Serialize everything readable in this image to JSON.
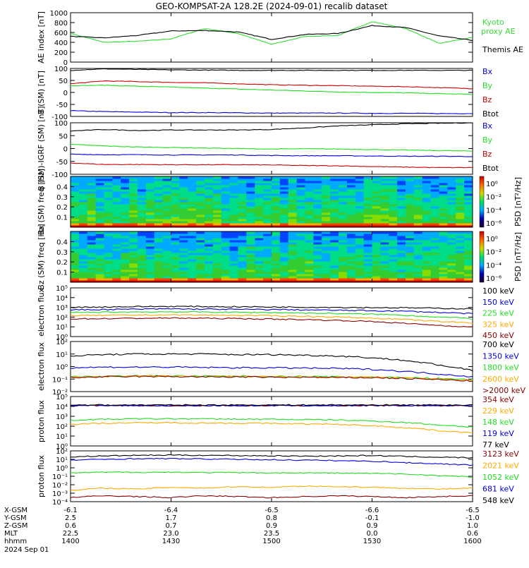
{
  "title": "GEO-KOMPSAT-2A 128.2E (2024-09-01) recalib dataset",
  "x_axis": {
    "row_labels": [
      "X-GSM",
      "Y-GSM",
      "Z-GSM",
      "MLT",
      "hhmm",
      "2024 Sep 01"
    ],
    "columns": [
      {
        "xgsm": "-6.1",
        "ygsm": "2.5",
        "zgsm": "0.6",
        "mlt": "22.5",
        "hhmm": "1400"
      },
      {
        "xgsm": "-6.4",
        "ygsm": "1.7",
        "zgsm": "0.7",
        "mlt": "23.0",
        "hhmm": "1430"
      },
      {
        "xgsm": "-6.5",
        "ygsm": "0.8",
        "zgsm": "0.9",
        "mlt": "23.5",
        "hhmm": "1500"
      },
      {
        "xgsm": "-6.6",
        "ygsm": "-0.1",
        "zgsm": "0.9",
        "mlt": "0.0",
        "hhmm": "1530"
      },
      {
        "xgsm": "-6.5",
        "ygsm": "-1.0",
        "zgsm": "1.0",
        "mlt": "0.6",
        "hhmm": "1600"
      }
    ]
  },
  "colors": {
    "black": "#000000",
    "blue": "#0000dd",
    "green": "#22dd22",
    "red": "#cc0000",
    "orange": "#ffaa00",
    "darkred": "#880000",
    "kyoto": "#33dd33"
  },
  "chart_data": [
    {
      "type": "line",
      "ylabel": "AE index [nT]",
      "ylim": [
        0,
        1000
      ],
      "yticks": [
        "0",
        "200",
        "400",
        "600",
        "800",
        "1000"
      ],
      "x": [
        "1400",
        "1410",
        "1420",
        "1430",
        "1440",
        "1450",
        "1500",
        "1510",
        "1520",
        "1530",
        "1540",
        "1550",
        "1600"
      ],
      "series": [
        {
          "name": "Kyoto proxy AE",
          "color": "kyoto",
          "values": [
            580,
            400,
            420,
            470,
            680,
            580,
            360,
            520,
            540,
            820,
            680,
            380,
            500
          ]
        },
        {
          "name": "Themis AE",
          "color": "black",
          "values": [
            520,
            490,
            540,
            630,
            640,
            610,
            460,
            560,
            580,
            740,
            700,
            530,
            440
          ]
        }
      ]
    },
    {
      "type": "line",
      "ylabel": "B (SM) [nT]",
      "ylim": [
        -100,
        100
      ],
      "yticks": [
        "-100",
        "-50",
        "0",
        "50",
        "100"
      ],
      "x": [
        "1400",
        "1410",
        "1420",
        "1430",
        "1440",
        "1450",
        "1500",
        "1510",
        "1520",
        "1530",
        "1540",
        "1550",
        "1600"
      ],
      "series": [
        {
          "name": "Bx",
          "color": "blue",
          "values": [
            -76,
            -80,
            -82,
            -84,
            -84,
            -85,
            -86,
            -86,
            -86,
            -87,
            -87,
            -88,
            -88
          ]
        },
        {
          "name": "By",
          "color": "green",
          "values": [
            28,
            30,
            26,
            22,
            18,
            14,
            10,
            6,
            2,
            0,
            -2,
            -5,
            -8
          ]
        },
        {
          "name": "Bz",
          "color": "red",
          "values": [
            36,
            48,
            45,
            42,
            40,
            36,
            32,
            30,
            28,
            26,
            24,
            20,
            16
          ]
        },
        {
          "name": "Btot",
          "color": "black",
          "values": [
            92,
            98,
            96,
            94,
            93,
            92,
            92,
            92,
            92,
            92,
            92,
            92,
            92
          ]
        }
      ]
    },
    {
      "type": "line",
      "ylabel": "B (SM)-IGRF (SM) [nT]",
      "ylim": [
        -100,
        100
      ],
      "yticks": [
        "-100",
        "-50",
        "0",
        "50",
        "100"
      ],
      "x": [
        "1400",
        "1410",
        "1420",
        "1430",
        "1440",
        "1450",
        "1500",
        "1510",
        "1520",
        "1530",
        "1540",
        "1550",
        "1600"
      ],
      "series": [
        {
          "name": "Bx",
          "color": "blue",
          "values": [
            -22,
            -24,
            -24,
            -25,
            -25,
            -25,
            -27,
            -28,
            -28,
            -29,
            -30,
            -30,
            -31
          ]
        },
        {
          "name": "By",
          "color": "green",
          "values": [
            16,
            10,
            6,
            4,
            2,
            0,
            -2,
            -1,
            -2,
            -4,
            -6,
            -8,
            -10
          ]
        },
        {
          "name": "Bz",
          "color": "red",
          "values": [
            -56,
            -62,
            -62,
            -63,
            -63,
            -63,
            -64,
            -66,
            -67,
            -70,
            -72,
            -74,
            -74
          ]
        },
        {
          "name": "Btot",
          "color": "black",
          "values": [
            68,
            74,
            70,
            72,
            72,
            72,
            74,
            80,
            88,
            92,
            96,
            98,
            100
          ]
        }
      ]
    },
    {
      "type": "heatmap",
      "ylabel": "Bx (SM) freq [Hz]",
      "ylim": [
        0,
        0.5
      ],
      "yticks": [
        "0.1",
        "0.2",
        "0.3",
        "0.4"
      ],
      "colorbar": {
        "label": "PSD [nT²/Hz]",
        "ticks": [
          "10⁰",
          "10⁻²",
          "10⁻⁴",
          "10⁻⁶"
        ]
      }
    },
    {
      "type": "heatmap",
      "ylabel": "Bz (SM) freq [Hz]",
      "ylim": [
        0,
        0.5
      ],
      "yticks": [
        "0.1",
        "0.2",
        "0.3",
        "0.4"
      ],
      "colorbar": {
        "label": "PSD [nT²/Hz]",
        "ticks": [
          "10⁰",
          "10⁻²",
          "10⁻⁴",
          "10⁻⁶"
        ]
      }
    },
    {
      "type": "line",
      "ylabel": "electron flux",
      "log": true,
      "ylim_exp": [
        0,
        5
      ],
      "yticks": [
        "10⁰",
        "10¹",
        "10²",
        "10³",
        "10⁴",
        "10⁵"
      ],
      "x": [
        "1400",
        "1410",
        "1420",
        "1430",
        "1440",
        "1450",
        "1500",
        "1510",
        "1520",
        "1530",
        "1540",
        "1550",
        "1600"
      ],
      "series": [
        {
          "name": "100 keV",
          "color": "black",
          "values": [
            1000,
            1100,
            1200,
            1250,
            1200,
            1150,
            1100,
            1050,
            1000,
            950,
            900,
            800,
            700
          ]
        },
        {
          "name": "150 keV",
          "color": "blue",
          "values": [
            550,
            600,
            650,
            700,
            650,
            620,
            600,
            550,
            500,
            450,
            400,
            300,
            220
          ]
        },
        {
          "name": "225 keV",
          "color": "green",
          "values": [
            300,
            320,
            340,
            350,
            330,
            310,
            290,
            260,
            230,
            200,
            150,
            100,
            70
          ]
        },
        {
          "name": "325 keV",
          "color": "orange",
          "values": [
            140,
            150,
            160,
            170,
            160,
            150,
            140,
            120,
            100,
            80,
            55,
            35,
            25
          ]
        },
        {
          "name": "450 keV",
          "color": "darkred",
          "values": [
            65,
            70,
            75,
            80,
            75,
            70,
            62,
            55,
            45,
            35,
            22,
            14,
            9
          ]
        }
      ]
    },
    {
      "type": "line",
      "ylabel": "electron flux",
      "log": true,
      "ylim_exp": [
        -2,
        2
      ],
      "yticks": [
        "10⁻²",
        "10⁻¹",
        "10⁰",
        "10¹",
        "10²"
      ],
      "x": [
        "1400",
        "1410",
        "1420",
        "1430",
        "1440",
        "1450",
        "1500",
        "1510",
        "1520",
        "1530",
        "1540",
        "1550",
        "1600"
      ],
      "series": [
        {
          "name": "700 keV",
          "color": "black",
          "values": [
            7,
            9,
            10,
            10,
            10,
            9,
            9,
            8,
            7,
            5,
            3,
            1.2,
            0.5
          ]
        },
        {
          "name": "1350 keV",
          "color": "blue",
          "values": [
            0.8,
            0.9,
            0.9,
            0.9,
            0.85,
            0.8,
            0.8,
            0.75,
            0.7,
            0.6,
            0.4,
            0.25,
            0.15
          ]
        },
        {
          "name": "1800 keV",
          "color": "green",
          "values": [
            0.15,
            0.17,
            0.18,
            0.18,
            0.17,
            0.17,
            0.16,
            0.16,
            0.15,
            0.15,
            0.13,
            0.11,
            0.09
          ]
        },
        {
          "name": "2600 keV",
          "color": "orange",
          "values": [
            0.14,
            0.16,
            0.17,
            0.17,
            0.16,
            0.16,
            0.15,
            0.15,
            0.14,
            0.14,
            0.12,
            0.1,
            0.08
          ]
        },
        {
          "name": ">2000 keV",
          "color": "darkred",
          "values": [
            0.13,
            0.15,
            0.16,
            0.16,
            0.15,
            0.15,
            0.14,
            0.14,
            0.13,
            0.13,
            0.11,
            0.09,
            0.07
          ]
        }
      ]
    },
    {
      "type": "line",
      "ylabel": "proton flux",
      "log": true,
      "ylim_exp": [
        0,
        5
      ],
      "yticks": [
        "10⁰",
        "10¹",
        "10²",
        "10³",
        "10⁴",
        "10⁵"
      ],
      "x": [
        "1400",
        "1410",
        "1420",
        "1430",
        "1440",
        "1450",
        "1500",
        "1510",
        "1520",
        "1530",
        "1540",
        "1550",
        "1600"
      ],
      "series": [
        {
          "name": "354 keV",
          "color": "darkred",
          "values": [
            12000,
            12000,
            12000,
            12000,
            12000,
            12000,
            12000,
            12000,
            12000,
            12000,
            12000,
            12000,
            12000
          ]
        },
        {
          "name": "229 keV",
          "color": "orange",
          "values": [
            150,
            200,
            220,
            220,
            210,
            200,
            190,
            170,
            150,
            110,
            70,
            35,
            20
          ]
        },
        {
          "name": "148 keV",
          "color": "green",
          "values": [
            400,
            500,
            550,
            560,
            540,
            520,
            500,
            460,
            420,
            330,
            230,
            130,
            80
          ]
        },
        {
          "name": "119 keV",
          "color": "blue",
          "values": [
            12000,
            12000,
            12000,
            12000,
            12000,
            12000,
            12000,
            12000,
            12000,
            12000,
            12000,
            12000,
            12000
          ]
        },
        {
          "name": "77 keV",
          "color": "black",
          "values": [
            14000,
            14000,
            14000,
            14000,
            14000,
            14000,
            14000,
            14000,
            14000,
            14000,
            14000,
            14000,
            14000
          ]
        }
      ]
    },
    {
      "type": "line",
      "ylabel": "proton flux",
      "log": true,
      "ylim_exp": [
        -4,
        2
      ],
      "yticks": [
        "10⁻⁴",
        "10⁻³",
        "10⁻²",
        "10⁻¹",
        "10⁰",
        "10¹",
        "10²"
      ],
      "x": [
        "1400",
        "1410",
        "1420",
        "1430",
        "1440",
        "1450",
        "1500",
        "1510",
        "1520",
        "1530",
        "1540",
        "1550",
        "1600"
      ],
      "series": [
        {
          "name": "3123 keV",
          "color": "darkred",
          "values": [
            0.0003,
            0.0005,
            0.0004,
            0.0003,
            0.0005,
            0.0004,
            0.0003,
            0.0004,
            0.0005,
            0.0004,
            0.0003,
            0.0004,
            0.0005
          ]
        },
        {
          "name": "2021 keV",
          "color": "orange",
          "values": [
            0.002,
            0.004,
            0.003,
            0.005,
            0.004,
            0.006,
            0.005,
            0.007,
            0.006,
            0.005,
            0.004,
            0.003,
            0.004
          ]
        },
        {
          "name": "1052 keV",
          "color": "green",
          "values": [
            0.25,
            0.3,
            0.3,
            0.3,
            0.28,
            0.27,
            0.25,
            0.25,
            0.24,
            0.22,
            0.18,
            0.12,
            0.08
          ]
        },
        {
          "name": "681 keV",
          "color": "blue",
          "values": [
            8,
            10,
            12,
            12,
            11,
            10,
            9,
            8,
            7,
            6,
            4,
            3,
            2
          ]
        },
        {
          "name": "548 keV",
          "color": "black",
          "values": [
            20,
            25,
            30,
            32,
            30,
            28,
            26,
            24,
            25,
            28,
            22,
            18,
            15
          ]
        }
      ]
    }
  ]
}
